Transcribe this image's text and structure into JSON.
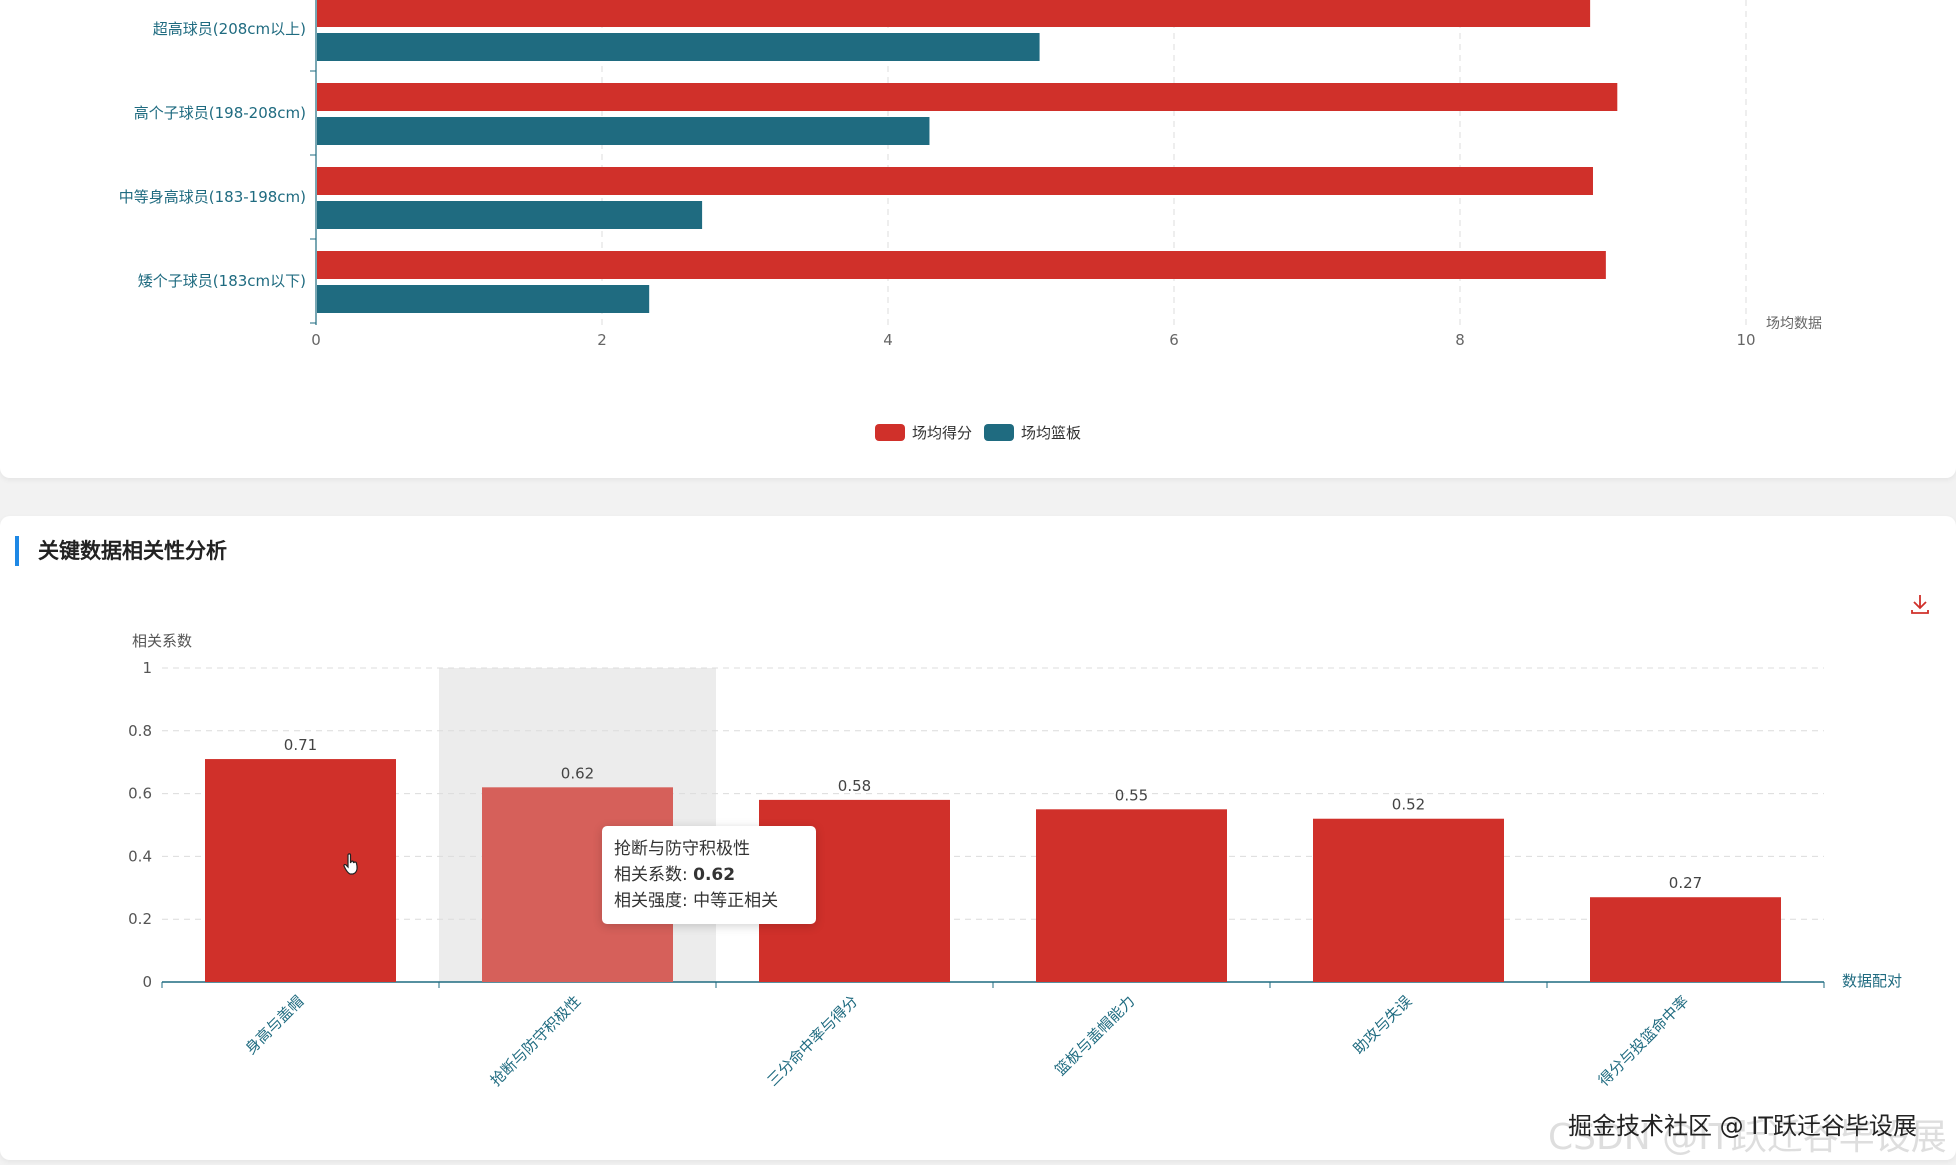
{
  "chart_data": [
    {
      "type": "bar",
      "orientation": "horizontal",
      "categories": [
        "矮个子球员(183cm以下)",
        "中等身高球员(183-198cm)",
        "高个子球员(198-208cm)",
        "超高球员(208cm以上)"
      ],
      "series": [
        {
          "name": "场均得分",
          "values": [
            9.02,
            8.93,
            9.1,
            8.91
          ],
          "color": "#d0302a"
        },
        {
          "name": "场均篮板",
          "values": [
            2.33,
            2.7,
            4.29,
            5.06
          ],
          "color": "#1f6b80"
        }
      ],
      "xlabel": "场均数据",
      "xlim": [
        0,
        10
      ],
      "xticks": [
        "0",
        "2",
        "4",
        "6",
        "8",
        "10"
      ],
      "grid": true,
      "legend": "bottom-center"
    },
    {
      "type": "bar",
      "title": "关键数据相关性分析",
      "categories": [
        "身高与盖帽",
        "抢断与防守积极性",
        "三分命中率与得分",
        "篮板与盖帽能力",
        "助攻与失误",
        "得分与投篮命中率"
      ],
      "values": [
        0.71,
        0.62,
        0.58,
        0.55,
        0.52,
        0.27
      ],
      "value_labels": [
        "0.71",
        "0.62",
        "0.58",
        "0.55",
        "0.52",
        "0.27"
      ],
      "ylabel": "相关系数",
      "xlabel": "数据配对",
      "ylim": [
        0,
        1
      ],
      "yticks": [
        "0",
        "0.2",
        "0.4",
        "0.6",
        "0.8",
        "1"
      ],
      "grid": true,
      "highlighted_index": 1,
      "colors": {
        "bar": "#d0302a",
        "bar_highlight": "#d6605a",
        "highlight_band": "#ececec",
        "axis": "#1f6b80"
      }
    }
  ],
  "tooltip": {
    "name": "抢断与防守积极性",
    "coef_label": "相关系数: ",
    "coef_value": "0.62",
    "strength_label": "相关强度: ",
    "strength_value": "中等正相关"
  },
  "section_title": "关键数据相关性分析",
  "watermark": "掘金技术社区 @ IT跃迁谷毕设展",
  "watermark_faint": "CSDN @IT跃迁谷毕设展",
  "icons": {
    "download": "download-icon",
    "cursor": "hand-pointer-icon"
  }
}
